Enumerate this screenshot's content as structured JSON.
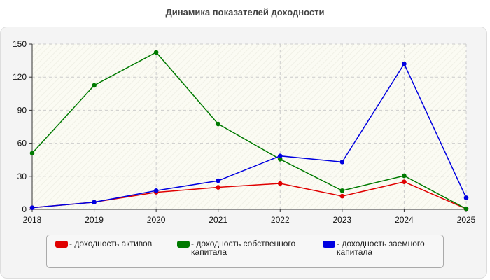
{
  "title": "Динамика показателей доходности",
  "chart_data": {
    "type": "line",
    "title": "Динамика показателей доходности",
    "x": [
      "2018",
      "2019",
      "2020",
      "2021",
      "2022",
      "2023",
      "2024",
      "2025"
    ],
    "ylim": [
      0,
      150
    ],
    "yticks": [
      0,
      30,
      60,
      90,
      120,
      150
    ],
    "grid": true,
    "legend_position": "bottom",
    "series": [
      {
        "name": "- доходность активов",
        "name_lines": [
          "- доходность активов"
        ],
        "color": "#e00000",
        "values": [
          1.5,
          6.5,
          15.5,
          20,
          23.5,
          12,
          25,
          0.5
        ]
      },
      {
        "name": "- доходность собственного капитала",
        "name_lines": [
          "- доходность собственного",
          "капитала"
        ],
        "color": "#007a00",
        "values": [
          51,
          112.5,
          142.5,
          77.5,
          45.5,
          17,
          30.5,
          0.5
        ]
      },
      {
        "name": "- доходность заемного капитала",
        "name_lines": [
          "- доходность заемного",
          "капитала"
        ],
        "color": "#0000e0",
        "values": [
          1.5,
          6.5,
          17,
          26,
          48.5,
          43,
          132,
          10.5
        ]
      }
    ]
  }
}
